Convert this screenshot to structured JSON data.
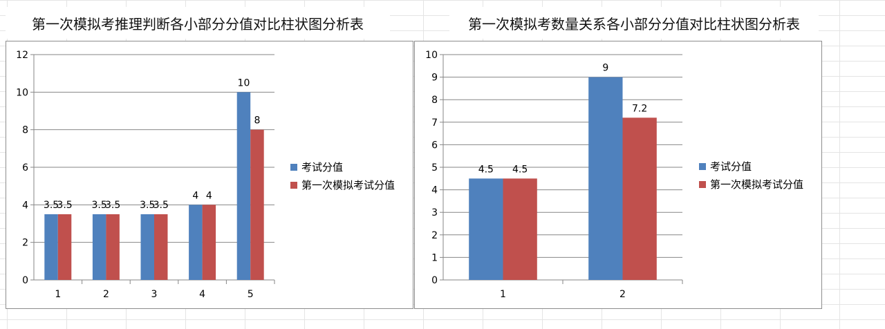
{
  "chart_data": [
    {
      "type": "bar",
      "title": "第一次模拟考推理判断各小部分分值对比柱状图分析表",
      "categories": [
        "1",
        "2",
        "3",
        "4",
        "5"
      ],
      "series": [
        {
          "name": "考试分值",
          "values": [
            3.5,
            3.5,
            3.5,
            4,
            10
          ],
          "color": "#4f81bd"
        },
        {
          "name": "第一次模拟考试分值",
          "values": [
            3.5,
            3.5,
            3.5,
            4,
            8
          ],
          "color": "#c0504d"
        }
      ],
      "yticks": [
        0,
        2,
        4,
        6,
        8,
        10,
        12
      ],
      "ylim": [
        0,
        12
      ],
      "grid": true,
      "legend": "right"
    },
    {
      "type": "bar",
      "title": "第一次模拟考数量关系各小部分分值对比柱状图分析表",
      "categories": [
        "1",
        "2"
      ],
      "series": [
        {
          "name": "考试分值",
          "values": [
            4.5,
            9
          ],
          "color": "#4f81bd"
        },
        {
          "name": "第一次模拟考试分值",
          "values": [
            4.5,
            7.2
          ],
          "color": "#c0504d"
        }
      ],
      "yticks": [
        0,
        1,
        2,
        3,
        4,
        5,
        6,
        7,
        8,
        9,
        10
      ],
      "ylim": [
        0,
        10
      ],
      "grid": true,
      "legend": "right"
    }
  ]
}
